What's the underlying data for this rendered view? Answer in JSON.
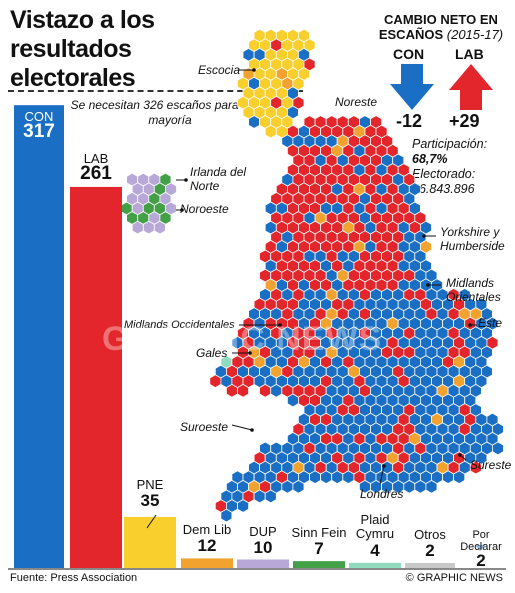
{
  "title": "Vistazo a los resultados electorales",
  "majority_note": "Se necesitan 326 escaños para tener mayoría",
  "net_change": {
    "title": "CAMBIO NETO EN ESCAÑOS",
    "period": "(2015-17)",
    "con_label": "CON",
    "con_value": "-12",
    "lab_label": "LAB",
    "lab_value": "+29"
  },
  "turnout": {
    "label": "Participación:",
    "value": "68,7%",
    "electorate_label": "Electorado:",
    "electorate_value": "46.843.896"
  },
  "colors": {
    "CON": "#1a6fc4",
    "LAB": "#e3262c",
    "PNE": "#f8cf2c",
    "Dem Lib": "#f2a22e",
    "DUP": "#b8a8d8",
    "Sinn Fein": "#43a047",
    "Plaid Cymru": "#8fdbc0",
    "Otros": "#c8c8c8",
    "Por Declarar": "#9ec8e8"
  },
  "chart_data": {
    "type": "bar",
    "categories": [
      "CON",
      "LAB",
      "PNE",
      "Dem Lib",
      "DUP",
      "Sinn Fein",
      "Plaid Cymru",
      "Otros",
      "Por Declarar"
    ],
    "values": [
      317,
      261,
      35,
      12,
      10,
      7,
      4,
      2,
      2
    ],
    "xlabel": "",
    "ylabel": "",
    "majority_threshold": 326
  },
  "regions": {
    "escocia": "Escocia",
    "irlanda_norte": "Irlanda del Norte",
    "noreste": "Noreste",
    "noroeste": "Noroeste",
    "yorkshire": "Yorkshire y Humberside",
    "midlands_orientales": "Midlands Orientales",
    "midlands_occidentales": "Midlands Occidentales",
    "este": "Este",
    "gales": "Gales",
    "suroeste": "Suroeste",
    "sureste": "Sureste",
    "londres": "Londres"
  },
  "source": "Fuente: Press Association",
  "credit": "© GRAPHIC NEWS",
  "watermark": "GRAPHIC NEWS"
}
